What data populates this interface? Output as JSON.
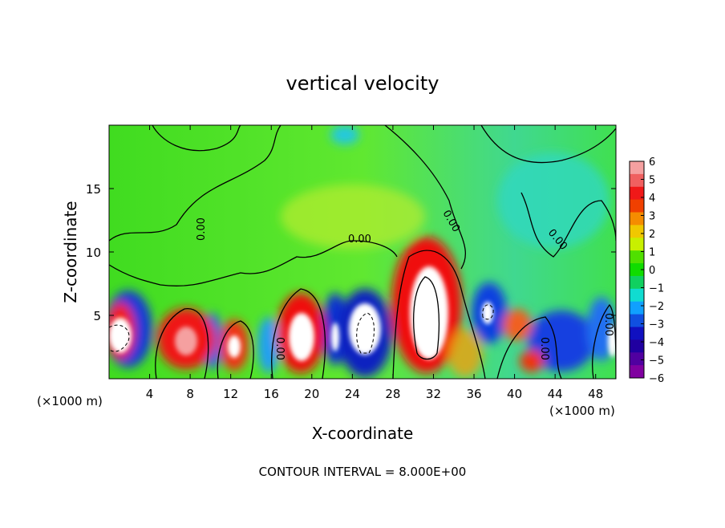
{
  "chart_data": {
    "type": "heatmap",
    "title": "vertical velocity",
    "xlabel": "X-coordinate",
    "ylabel": "Z-coordinate",
    "x_unit_left": "(×1000 m)",
    "x_unit_right": "(×1000 m)",
    "xlim": [
      0,
      50
    ],
    "ylim": [
      0,
      20
    ],
    "x_ticks": [
      4,
      8,
      12,
      16,
      20,
      24,
      28,
      32,
      36,
      40,
      44,
      48
    ],
    "y_ticks": [
      5,
      10,
      15
    ],
    "contour_interval_text": "CONTOUR INTERVAL = 8.000E+00",
    "contour_labels": [
      "0.00",
      "0.00",
      "0.00",
      "0.00",
      "0.00",
      "0.00",
      "0.00"
    ],
    "colorbar": {
      "ticks": [
        6,
        5,
        4,
        3,
        2,
        1,
        0,
        -1,
        -2,
        -3,
        -4,
        -5,
        -6
      ],
      "tick_labels": [
        "6",
        "5",
        "4",
        "3",
        "2",
        "1",
        "0",
        "−1",
        "−2",
        "−3",
        "−4",
        "−5",
        "−6"
      ],
      "colors": [
        "#f5a0a0",
        "#f06060",
        "#f01818",
        "#f04000",
        "#f58c00",
        "#f0c800",
        "#c8f000",
        "#50e000",
        "#10dc00",
        "#10d060",
        "#10dcd0",
        "#10a0ff",
        "#1050e0",
        "#1010c0",
        "#2000a0",
        "#5000a0",
        "#8000a0"
      ]
    },
    "features": [
      {
        "x": 1,
        "z": 3.5,
        "w": 0.9,
        "kind": "updraft_core"
      },
      {
        "x": 7.5,
        "z": 3,
        "w": 0.7,
        "kind": "updraft"
      },
      {
        "x": 12.5,
        "z": 3,
        "w": 0.65,
        "kind": "updraft"
      },
      {
        "x": 18.5,
        "z": 3.5,
        "w": 0.8,
        "kind": "updraft_core"
      },
      {
        "x": 24.5,
        "z": 3.5,
        "w": -0.8,
        "kind": "downdraft_core"
      },
      {
        "x": 31,
        "z": 5.5,
        "w": 1.0,
        "kind": "updraft_core"
      },
      {
        "x": 38,
        "z": 5,
        "w": -0.6,
        "kind": "downdraft"
      },
      {
        "x": 45,
        "z": 2.5,
        "w": -0.7,
        "kind": "downdraft"
      }
    ]
  }
}
